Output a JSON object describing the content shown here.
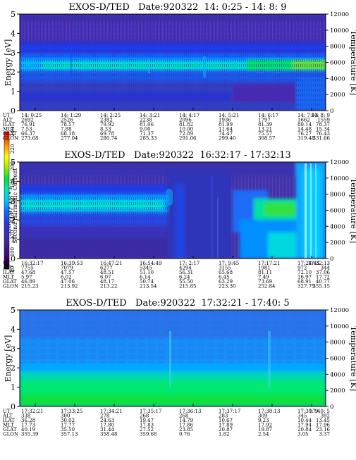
{
  "colorbar": {
    "label": "Second Harmonic Current",
    "ticks": [
      "80",
      "100",
      "120",
      "140",
      "160",
      "180",
      "200",
      "220",
      "240"
    ]
  },
  "chart_data": [
    {
      "type": "heatmap",
      "title": "EXOS-D/TED   Date:920322  14: 0:25 - 14: 8: 9",
      "ylabel": "Energy [eV]",
      "y2label": "Temperature [K]",
      "ylim": [
        0,
        5
      ],
      "y2lim": [
        0,
        12000
      ],
      "yticks": [
        "0",
        "1",
        "2",
        "3",
        "4",
        "5"
      ],
      "y2ticks": [
        "0",
        "2000",
        "4000",
        "6000",
        "8000",
        "10000",
        "12000"
      ],
      "row_labels": [
        "UT",
        "ALT",
        "ILAT",
        "MLT",
        "GLAT",
        "GLON"
      ],
      "columns": [
        [
          "14: 0:25",
          "2692",
          "76.91",
          "7.53",
          "66.37",
          "273.68"
        ],
        [
          "14: 1:29",
          "2526",
          "78.57",
          "7.88",
          "68.18",
          "277.04"
        ],
        [
          "14: 2:25",
          "2382",
          "79.92",
          "8.33",
          "69.78",
          "280.74"
        ],
        [
          "14: 3:21",
          "2238",
          "81.06",
          "9.00",
          "71.37",
          "285.33"
        ],
        [
          "14: 4:17",
          "2096",
          "81.82",
          "10.00",
          "72.89",
          "291.06"
        ],
        [
          "14: 5:21",
          "1936",
          "81.99",
          "11.64",
          "74.47",
          "299.40"
        ],
        [
          "14: 6:17",
          "1797",
          "81.39",
          "13.21",
          "75.57",
          "308.57"
        ],
        [
          "14: 7:13",
          "1662",
          "80.14",
          "14.48",
          "76.27",
          "319.48"
        ],
        [
          "14: 8: 9",
          "1559",
          "78.37",
          "15.34",
          "76.43",
          "331.66"
        ]
      ]
    },
    {
      "type": "heatmap",
      "title": "EXOS-D/TED   Date:920322  16:32:17 - 17:32:13",
      "ylabel": "Energy [eV]",
      "y2label": "Temperature [K]",
      "ylim": [
        0,
        5
      ],
      "y2lim": [
        0,
        12000
      ],
      "yticks": [
        "0",
        "1",
        "2",
        "3",
        "4",
        "5"
      ],
      "y2ticks": [
        "0",
        "2000",
        "4000",
        "6000",
        "8000",
        "10000",
        "12000"
      ],
      "row_labels": [
        "UT",
        "ALT",
        "ILAT",
        "MLT",
        "GLAT",
        "GLON"
      ],
      "columns": [
        [
          "16:32:17",
          "7755",
          "47.68",
          "5.97",
          "46.89",
          "215.23"
        ],
        [
          "16:39:53",
          "7079",
          "47.57",
          "6.02",
          "47.06",
          "213.92"
        ],
        [
          "16:47:21",
          "6277",
          "48.51",
          "6.07",
          "48.17",
          "213.22"
        ],
        [
          "16:54:49",
          "5345",
          "51.10",
          "6.14",
          "50.74",
          "213.54"
        ],
        [
          "17: 2:17",
          "4294",
          "56.31",
          "6.24",
          "55.50",
          "215.85"
        ],
        [
          "17: 9:45",
          "3155",
          "65.68",
          "6.45",
          "63.29",
          "223.30"
        ],
        [
          "17:17:21",
          "1981",
          "81.11",
          "7.49",
          "73.69",
          "252.84"
        ],
        [
          "17:24:45",
          "972",
          "72.10",
          "16.97",
          "68.91",
          "327.75"
        ],
        [
          "17:32:13",
          "344",
          "37.06",
          "17.72",
          "40.77",
          "355.15"
        ]
      ]
    },
    {
      "type": "heatmap",
      "title": "EXOS-D/TED   Date:920322  17:32:21 - 17:40: 5",
      "ylabel": "Energy [eV]",
      "y2label": "Temperature [K]",
      "ylim": [
        0,
        5
      ],
      "y2lim": [
        0,
        12000
      ],
      "yticks": [
        "0",
        "1",
        "2",
        "3",
        "4",
        "5"
      ],
      "y2ticks": [
        "0",
        "2000",
        "4000",
        "6000",
        "8000",
        "10000",
        "12000"
      ],
      "row_labels": [
        "UT",
        "ALT",
        "ILAT",
        "MLT",
        "GLAT",
        "GLON"
      ],
      "columns": [
        [
          "17:32:21",
          "338",
          "36.28",
          "17.73",
          "40.19",
          "355.39"
        ],
        [
          "17:33:25",
          "300",
          "30.02",
          "17.77",
          "35.50",
          "357.13"
        ],
        [
          "17:34:21",
          "278",
          "24.63",
          "17.80",
          "31.44",
          "358.48"
        ],
        [
          "17:35:17",
          "268",
          "19.47",
          "17.83",
          "27.52",
          "359.68"
        ],
        [
          "17:36:13",
          "268",
          "14.79",
          "17.86",
          "23.85",
          "0.76"
        ],
        [
          "17:37:17",
          "283",
          "10.67",
          "17.89",
          "20.87",
          "1.82"
        ],
        [
          "17:38:13",
          "309",
          "9.23",
          "17.92",
          "19.87",
          "2.54"
        ],
        [
          "17:39: 9",
          "345",
          "10.44",
          "17.94",
          "20.84",
          "3.05"
        ],
        [
          "17:40: 5",
          "392",
          "13.45",
          "17.96",
          "23.16",
          "3.37"
        ]
      ]
    }
  ]
}
